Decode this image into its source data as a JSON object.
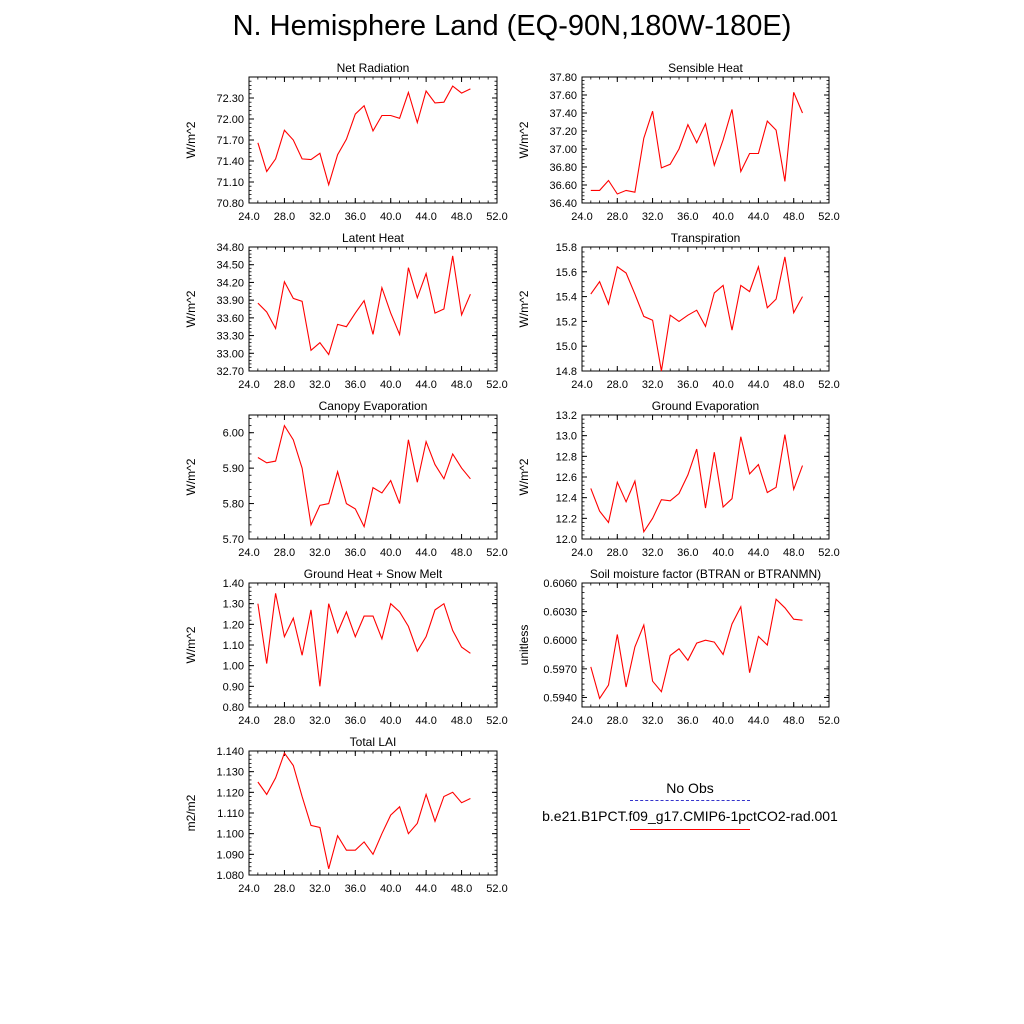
{
  "title": "N. Hemisphere Land (EQ-90N,180W-180E)",
  "legend": {
    "obs_label": "No Obs",
    "model_label": "b.e21.B1PCT.f09_g17.CMIP6-1pctCO2-rad.001",
    "obs_color": "#3333cc",
    "model_color": "#ff0000"
  },
  "chart_data": [
    {
      "type": "line",
      "title": "Net Radiation",
      "ylabel": "W/m^2",
      "xlim": [
        24,
        52
      ],
      "ylim": [
        70.8,
        72.6
      ],
      "xticks": [
        "24.0",
        "28.0",
        "32.0",
        "36.0",
        "40.0",
        "44.0",
        "48.0",
        "52.0"
      ],
      "yticks": [
        "70.80",
        "71.10",
        "71.40",
        "71.70",
        "72.00",
        "72.30"
      ],
      "x": [
        25,
        26,
        27,
        28,
        29,
        30,
        31,
        32,
        33,
        34,
        35,
        36,
        37,
        38,
        39,
        40,
        41,
        42,
        43,
        44,
        45,
        46,
        47,
        48,
        49
      ],
      "series": [
        {
          "color": "#ff0000",
          "values": [
            71.66,
            71.25,
            71.43,
            71.84,
            71.7,
            71.43,
            71.42,
            71.51,
            71.06,
            71.49,
            71.71,
            72.07,
            72.19,
            71.83,
            72.05,
            72.05,
            72.01,
            72.38,
            71.95,
            72.4,
            72.23,
            72.24,
            72.47,
            72.37,
            72.43
          ]
        }
      ]
    },
    {
      "type": "line",
      "title": "Sensible Heat",
      "ylabel": "W/m^2",
      "xlim": [
        24,
        52
      ],
      "ylim": [
        36.4,
        37.8
      ],
      "xticks": [
        "24.0",
        "28.0",
        "32.0",
        "36.0",
        "40.0",
        "44.0",
        "48.0",
        "52.0"
      ],
      "yticks": [
        "36.40",
        "36.60",
        "36.80",
        "37.00",
        "37.20",
        "37.40",
        "37.60",
        "37.80"
      ],
      "x": [
        25,
        26,
        27,
        28,
        29,
        30,
        31,
        32,
        33,
        34,
        35,
        36,
        37,
        38,
        39,
        40,
        41,
        42,
        43,
        44,
        45,
        46,
        47,
        48,
        49
      ],
      "series": [
        {
          "color": "#ff0000",
          "values": [
            36.54,
            36.54,
            36.65,
            36.5,
            36.54,
            36.52,
            37.12,
            37.42,
            36.79,
            36.83,
            37.0,
            37.27,
            37.07,
            37.28,
            36.82,
            37.1,
            37.44,
            36.75,
            36.95,
            36.95,
            37.31,
            37.21,
            36.64,
            37.63,
            37.4
          ]
        }
      ]
    },
    {
      "type": "line",
      "title": "Latent Heat",
      "ylabel": "W/m^2",
      "xlim": [
        24,
        52
      ],
      "ylim": [
        32.7,
        34.8
      ],
      "xticks": [
        "24.0",
        "28.0",
        "32.0",
        "36.0",
        "40.0",
        "44.0",
        "48.0",
        "52.0"
      ],
      "yticks": [
        "32.70",
        "33.00",
        "33.30",
        "33.60",
        "33.90",
        "34.20",
        "34.50",
        "34.80"
      ],
      "x": [
        25,
        26,
        27,
        28,
        29,
        30,
        31,
        32,
        33,
        34,
        35,
        36,
        37,
        38,
        39,
        40,
        41,
        42,
        43,
        44,
        45,
        46,
        47,
        48,
        49
      ],
      "series": [
        {
          "color": "#ff0000",
          "values": [
            33.85,
            33.7,
            33.42,
            34.21,
            33.93,
            33.88,
            33.05,
            33.18,
            32.98,
            33.49,
            33.45,
            33.68,
            33.89,
            33.32,
            34.11,
            33.68,
            33.32,
            34.45,
            33.94,
            34.35,
            33.68,
            33.75,
            34.65,
            33.65,
            34.0
          ]
        }
      ]
    },
    {
      "type": "line",
      "title": "Transpiration",
      "ylabel": "W/m^2",
      "xlim": [
        24,
        52
      ],
      "ylim": [
        14.8,
        15.8
      ],
      "xticks": [
        "24.0",
        "28.0",
        "32.0",
        "36.0",
        "40.0",
        "44.0",
        "48.0",
        "52.0"
      ],
      "yticks": [
        "14.8",
        "15.0",
        "15.2",
        "15.4",
        "15.6",
        "15.8"
      ],
      "x": [
        25,
        26,
        27,
        28,
        29,
        30,
        31,
        32,
        33,
        34,
        35,
        36,
        37,
        38,
        39,
        40,
        41,
        42,
        43,
        44,
        45,
        46,
        47,
        48,
        49
      ],
      "series": [
        {
          "color": "#ff0000",
          "values": [
            15.42,
            15.52,
            15.34,
            15.64,
            15.59,
            15.42,
            15.24,
            15.21,
            14.8,
            15.25,
            15.2,
            15.25,
            15.29,
            15.16,
            15.43,
            15.49,
            15.13,
            15.49,
            15.44,
            15.64,
            15.31,
            15.38,
            15.72,
            15.27,
            15.4
          ]
        }
      ]
    },
    {
      "type": "line",
      "title": "Canopy Evaporation",
      "ylabel": "W/m^2",
      "xlim": [
        24,
        52
      ],
      "ylim": [
        5.7,
        6.05
      ],
      "xticks": [
        "24.0",
        "28.0",
        "32.0",
        "36.0",
        "40.0",
        "44.0",
        "48.0",
        "52.0"
      ],
      "yticks": [
        "5.70",
        "5.80",
        "5.90",
        "6.00"
      ],
      "x": [
        25,
        26,
        27,
        28,
        29,
        30,
        31,
        32,
        33,
        34,
        35,
        36,
        37,
        38,
        39,
        40,
        41,
        42,
        43,
        44,
        45,
        46,
        47,
        48,
        49
      ],
      "series": [
        {
          "color": "#ff0000",
          "values": [
            5.93,
            5.915,
            5.92,
            6.02,
            5.98,
            5.9,
            5.74,
            5.795,
            5.8,
            5.89,
            5.8,
            5.785,
            5.735,
            5.845,
            5.83,
            5.865,
            5.8,
            5.98,
            5.86,
            5.975,
            5.91,
            5.87,
            5.94,
            5.9,
            5.87
          ]
        }
      ]
    },
    {
      "type": "line",
      "title": "Ground Evaporation",
      "ylabel": "W/m^2",
      "xlim": [
        24,
        52
      ],
      "ylim": [
        12.0,
        13.2
      ],
      "xticks": [
        "24.0",
        "28.0",
        "32.0",
        "36.0",
        "40.0",
        "44.0",
        "48.0",
        "52.0"
      ],
      "yticks": [
        "12.0",
        "12.2",
        "12.4",
        "12.6",
        "12.8",
        "13.0",
        "13.2"
      ],
      "x": [
        25,
        26,
        27,
        28,
        29,
        30,
        31,
        32,
        33,
        34,
        35,
        36,
        37,
        38,
        39,
        40,
        41,
        42,
        43,
        44,
        45,
        46,
        47,
        48,
        49
      ],
      "series": [
        {
          "color": "#ff0000",
          "values": [
            12.49,
            12.27,
            12.16,
            12.55,
            12.36,
            12.56,
            12.07,
            12.2,
            12.38,
            12.37,
            12.44,
            12.62,
            12.87,
            12.3,
            12.84,
            12.31,
            12.39,
            12.99,
            12.63,
            12.72,
            12.45,
            12.5,
            13.01,
            12.48,
            12.71
          ]
        }
      ]
    },
    {
      "type": "line",
      "title": "Ground Heat + Snow Melt",
      "ylabel": "W/m^2",
      "xlim": [
        24,
        52
      ],
      "ylim": [
        0.8,
        1.4
      ],
      "xticks": [
        "24.0",
        "28.0",
        "32.0",
        "36.0",
        "40.0",
        "44.0",
        "48.0",
        "52.0"
      ],
      "yticks": [
        "0.80",
        "0.90",
        "1.00",
        "1.10",
        "1.20",
        "1.30",
        "1.40"
      ],
      "x": [
        25,
        26,
        27,
        28,
        29,
        30,
        31,
        32,
        33,
        34,
        35,
        36,
        37,
        38,
        39,
        40,
        41,
        42,
        43,
        44,
        45,
        46,
        47,
        48,
        49
      ],
      "series": [
        {
          "color": "#ff0000",
          "values": [
            1.3,
            1.01,
            1.35,
            1.14,
            1.23,
            1.05,
            1.27,
            0.9,
            1.3,
            1.16,
            1.26,
            1.14,
            1.24,
            1.24,
            1.13,
            1.3,
            1.26,
            1.19,
            1.07,
            1.14,
            1.27,
            1.3,
            1.17,
            1.09,
            1.06
          ]
        }
      ]
    },
    {
      "type": "line",
      "title": "Soil moisture factor (BTRAN or BTRANMN)",
      "ylabel": "unitless",
      "xlim": [
        24,
        52
      ],
      "ylim": [
        0.593,
        0.606
      ],
      "xticks": [
        "24.0",
        "28.0",
        "32.0",
        "36.0",
        "40.0",
        "44.0",
        "48.0",
        "52.0"
      ],
      "yticks": [
        "0.5940",
        "0.5970",
        "0.6000",
        "0.6030",
        "0.6060"
      ],
      "x": [
        25,
        26,
        27,
        28,
        29,
        30,
        31,
        32,
        33,
        34,
        35,
        36,
        37,
        38,
        39,
        40,
        41,
        42,
        43,
        44,
        45,
        46,
        47,
        48,
        49
      ],
      "series": [
        {
          "color": "#ff0000",
          "values": [
            0.5972,
            0.5939,
            0.5953,
            0.6006,
            0.5951,
            0.5993,
            0.6016,
            0.5957,
            0.5946,
            0.5984,
            0.5991,
            0.5979,
            0.5997,
            0.6,
            0.5998,
            0.5985,
            0.6017,
            0.6035,
            0.5966,
            0.6004,
            0.5995,
            0.6043,
            0.6034,
            0.6022,
            0.6021
          ]
        }
      ]
    },
    {
      "type": "line",
      "title": "Total LAI",
      "ylabel": "m2/m2",
      "xlim": [
        24,
        52
      ],
      "ylim": [
        1.08,
        1.14
      ],
      "xticks": [
        "24.0",
        "28.0",
        "32.0",
        "36.0",
        "40.0",
        "44.0",
        "48.0",
        "52.0"
      ],
      "yticks": [
        "1.080",
        "1.090",
        "1.100",
        "1.110",
        "1.120",
        "1.130",
        "1.140"
      ],
      "x": [
        25,
        26,
        27,
        28,
        29,
        30,
        31,
        32,
        33,
        34,
        35,
        36,
        37,
        38,
        39,
        40,
        41,
        42,
        43,
        44,
        45,
        46,
        47,
        48,
        49
      ],
      "series": [
        {
          "color": "#ff0000",
          "values": [
            1.125,
            1.119,
            1.127,
            1.139,
            1.133,
            1.118,
            1.104,
            1.103,
            1.083,
            1.099,
            1.092,
            1.092,
            1.096,
            1.09,
            1.1,
            1.109,
            1.113,
            1.1,
            1.105,
            1.119,
            1.106,
            1.118,
            1.12,
            1.115,
            1.117
          ]
        }
      ]
    }
  ]
}
